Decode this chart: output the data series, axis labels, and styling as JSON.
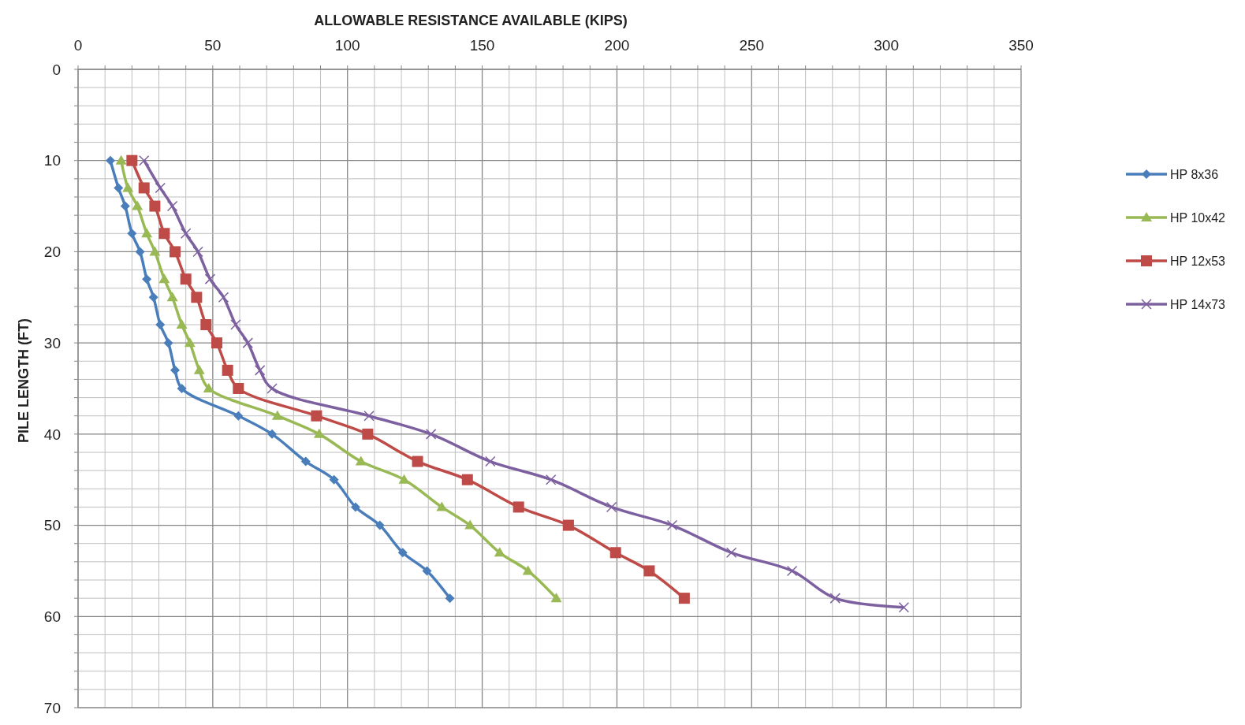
{
  "chart_data": {
    "type": "line",
    "xlabel": "ALLOWABLE RESISTANCE AVAILABLE (KIPS)",
    "ylabel": "PILE LENGTH (FT)",
    "xlim": [
      0,
      350
    ],
    "ylim": [
      70,
      0
    ],
    "xticks": [
      0,
      {
        "value": 10,
        "label": null
      },
      {
        "value": 20,
        "label": null
      },
      {
        "value": 30,
        "label": null
      },
      {
        "value": 40,
        "label": null
      },
      50,
      {
        "value": 60,
        "label": null
      },
      {
        "value": 70,
        "label": null
      },
      {
        "value": 80,
        "label": null
      },
      {
        "value": 90,
        "label": null
      },
      100,
      {
        "value": 110,
        "label": null
      },
      {
        "value": 120,
        "label": null
      },
      {
        "value": 130,
        "label": null
      },
      {
        "value": 140,
        "label": null
      },
      150,
      {
        "value": 160,
        "label": null
      },
      {
        "value": 170,
        "label": null
      },
      {
        "value": 180,
        "label": null
      },
      {
        "value": 190,
        "label": null
      },
      200,
      {
        "value": 210,
        "label": null
      },
      {
        "value": 220,
        "label": null
      },
      {
        "value": 230,
        "label": null
      },
      {
        "value": 240,
        "label": null
      },
      250,
      {
        "value": 260,
        "label": null
      },
      {
        "value": 270,
        "label": null
      },
      {
        "value": 280,
        "label": null
      },
      {
        "value": 290,
        "label": null
      },
      300,
      {
        "value": 310,
        "label": null
      },
      {
        "value": 320,
        "label": null
      },
      {
        "value": 330,
        "label": null
      },
      {
        "value": 340,
        "label": null
      },
      350
    ],
    "yticks": [
      0,
      {
        "value": 2,
        "label": null
      },
      {
        "value": 4,
        "label": null
      },
      {
        "value": 6,
        "label": null
      },
      {
        "value": 8,
        "label": null
      },
      10,
      {
        "value": 12,
        "label": null
      },
      {
        "value": 14,
        "label": null
      },
      {
        "value": 16,
        "label": null
      },
      {
        "value": 18,
        "label": null
      },
      20,
      {
        "value": 22,
        "label": null
      },
      {
        "value": 24,
        "label": null
      },
      {
        "value": 26,
        "label": null
      },
      {
        "value": 28,
        "label": null
      },
      30,
      {
        "value": 32,
        "label": null
      },
      {
        "value": 34,
        "label": null
      },
      {
        "value": 36,
        "label": null
      },
      {
        "value": 38,
        "label": null
      },
      40,
      {
        "value": 42,
        "label": null
      },
      {
        "value": 44,
        "label": null
      },
      {
        "value": 46,
        "label": null
      },
      {
        "value": 48,
        "label": null
      },
      50,
      {
        "value": 52,
        "label": null
      },
      {
        "value": 54,
        "label": null
      },
      {
        "value": 56,
        "label": null
      },
      {
        "value": 58,
        "label": null
      },
      60,
      {
        "value": 62,
        "label": null
      },
      {
        "value": 64,
        "label": null
      },
      {
        "value": 66,
        "label": null
      },
      {
        "value": 68,
        "label": null
      },
      70
    ],
    "grid": true,
    "legend": "right",
    "line_style": "solid",
    "series": [
      {
        "name": "HP 8x36",
        "color": "#4a7ebb",
        "marker": "diamond",
        "x": [
          12,
          15,
          17.5,
          20,
          23,
          25.5,
          28,
          30.5,
          33.5,
          36,
          38.5,
          59.5,
          72,
          84.5,
          95,
          103,
          112,
          120.5,
          129.5,
          138
        ],
        "values": [
          10,
          13,
          15,
          18,
          20,
          23,
          25,
          28,
          30,
          33,
          35,
          38,
          40,
          43,
          45,
          48,
          50,
          53,
          55,
          58
        ]
      },
      {
        "name": "HP 10x42",
        "color": "#98b954",
        "marker": "triangle",
        "x": [
          16,
          18.5,
          22,
          25.5,
          28.5,
          32,
          35,
          38.5,
          41.5,
          45,
          48.5,
          74,
          89.5,
          105,
          121,
          135,
          145.5,
          156.5,
          167,
          177.5
        ],
        "values": [
          10,
          13,
          15,
          18,
          20,
          23,
          25,
          28,
          30,
          33,
          35,
          38,
          40,
          43,
          45,
          48,
          50,
          53,
          55,
          58
        ]
      },
      {
        "name": "HP 12x53",
        "color": "#be4b48",
        "marker": "square",
        "x": [
          20,
          24.5,
          28.5,
          32,
          36,
          40,
          44,
          47.5,
          51.5,
          55.5,
          59.5,
          88.5,
          107.5,
          126,
          144.5,
          163.5,
          182,
          199.5,
          212,
          225
        ],
        "values": [
          10,
          13,
          15,
          18,
          20,
          23,
          25,
          28,
          30,
          33,
          35,
          38,
          40,
          43,
          45,
          48,
          50,
          53,
          55,
          58
        ]
      },
      {
        "name": "HP 14x73",
        "color": "#7d60a0",
        "marker": "cross",
        "x": [
          24.5,
          30.5,
          35,
          40,
          44.5,
          49,
          54,
          58.5,
          63,
          67.5,
          72,
          108,
          131,
          153,
          175.5,
          198,
          220.5,
          242.5,
          265,
          281,
          306.5
        ],
        "values": [
          10,
          13,
          15,
          18,
          20,
          23,
          25,
          28,
          30,
          33,
          35,
          38,
          40,
          43,
          45,
          48,
          50,
          53,
          55,
          58,
          59
        ]
      }
    ]
  }
}
